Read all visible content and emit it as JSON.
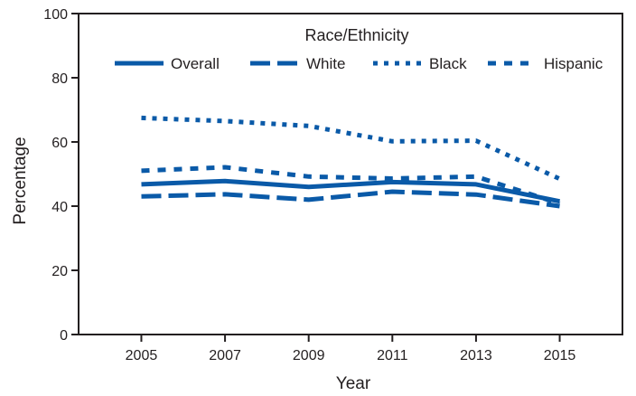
{
  "chart_data": {
    "type": "line",
    "title": "",
    "xlabel": "Year",
    "ylabel": "Percentage",
    "legend_title": "Race/Ethnicity",
    "legend_placement": "top-center",
    "grid": false,
    "x": [
      2005,
      2007,
      2009,
      2011,
      2013,
      2015
    ],
    "x_tick_labels": [
      "2005",
      "2007",
      "2009",
      "2011",
      "2013",
      "2015"
    ],
    "y_ticks": [
      0,
      20,
      40,
      60,
      80,
      100
    ],
    "y_tick_labels": [
      "0",
      "20",
      "40",
      "60",
      "80",
      "100"
    ],
    "xlim": [
      2003.5,
      2016.5
    ],
    "ylim": [
      0,
      100
    ],
    "series_color": "#0a5aa8",
    "series": [
      {
        "name": "Overall",
        "line_style": "solid",
        "values": [
          46.8,
          47.8,
          46.0,
          47.5,
          46.8,
          41.5
        ]
      },
      {
        "name": "White",
        "line_style": "dashed",
        "values": [
          43.0,
          43.7,
          42.0,
          44.5,
          43.6,
          40.0
        ]
      },
      {
        "name": "Black",
        "line_style": "dotted",
        "values": [
          67.5,
          66.5,
          65.0,
          60.2,
          60.4,
          48.5
        ]
      },
      {
        "name": "Hispanic",
        "line_style": "dotted",
        "values": [
          51.0,
          52.1,
          49.2,
          48.6,
          49.2,
          40.8
        ]
      }
    ]
  }
}
